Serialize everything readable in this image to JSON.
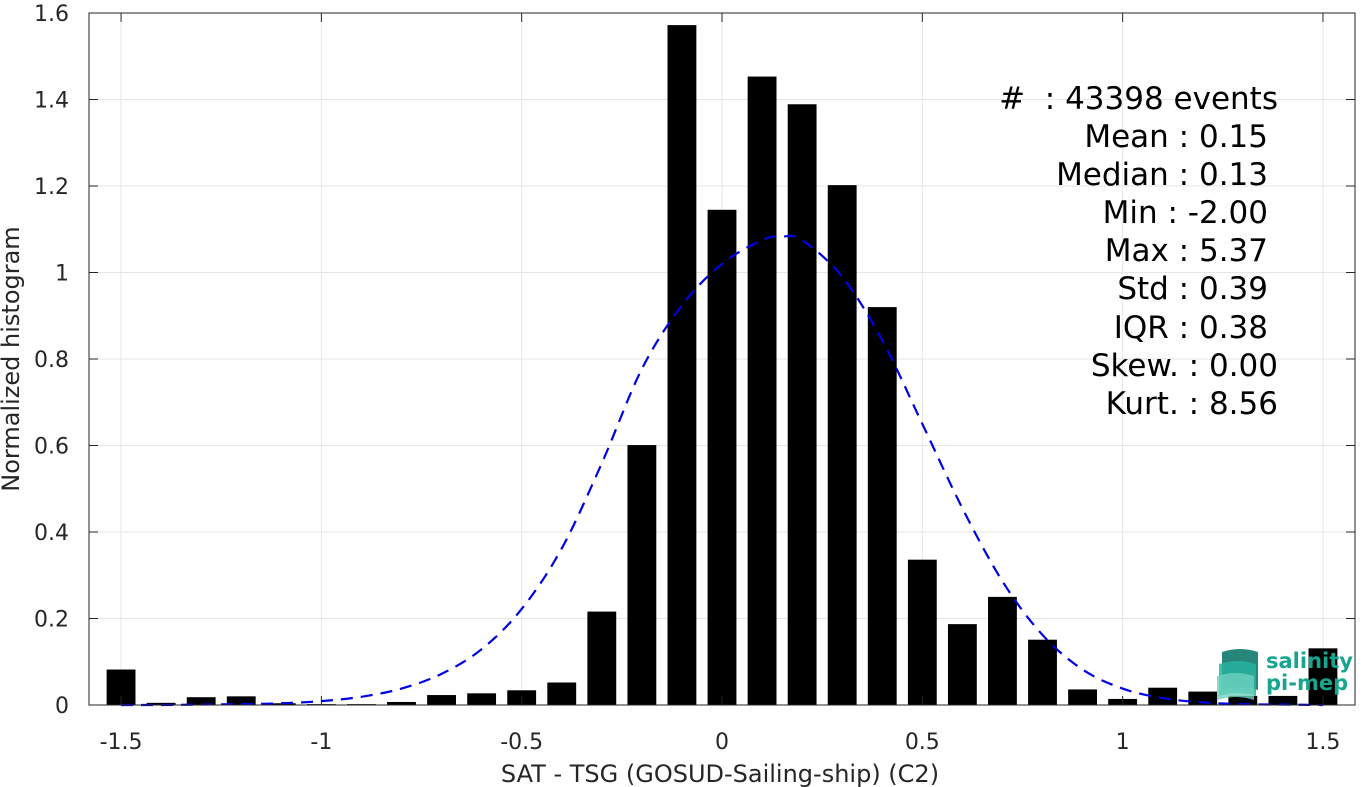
{
  "chart_data": {
    "type": "bar",
    "xlabel": "SAT - TSG (GOSUD-Sailing-ship) (C2)",
    "ylabel": "Normalized histogram",
    "xlim": [
      -1.58,
      1.58
    ],
    "ylim": [
      0,
      1.6
    ],
    "xticks": [
      -1.5,
      -1,
      -0.5,
      0,
      0.5,
      1,
      1.5
    ],
    "xtick_labels": [
      "-1.5",
      "-1",
      "-0.5",
      "0",
      "0.5",
      "1",
      "1.5"
    ],
    "yticks": [
      0,
      0.2,
      0.4,
      0.6,
      0.8,
      1,
      1.2,
      1.4,
      1.6
    ],
    "ytick_labels": [
      "0",
      "0.2",
      "0.4",
      "0.6",
      "0.8",
      "1",
      "1.2",
      "1.4",
      "1.6"
    ],
    "grid": true,
    "bin_width": 0.1,
    "bar_color": "#000000",
    "bars": {
      "x": [
        -1.5,
        -1.4,
        -1.3,
        -1.2,
        -1.1,
        -1.0,
        -0.9,
        -0.8,
        -0.7,
        -0.6,
        -0.5,
        -0.4,
        -0.3,
        -0.2,
        -0.1,
        0.0,
        0.1,
        0.2,
        0.3,
        0.4,
        0.5,
        0.6,
        0.7,
        0.8,
        0.9,
        1.0,
        1.1,
        1.2,
        1.3,
        1.4,
        1.5
      ],
      "values": [
        0.082,
        0.005,
        0.018,
        0.02,
        0.004,
        0.002,
        0.002,
        0.007,
        0.023,
        0.027,
        0.034,
        0.052,
        0.216,
        0.601,
        1.572,
        1.145,
        1.453,
        1.389,
        1.202,
        0.92,
        0.336,
        0.187,
        0.25,
        0.151,
        0.036,
        0.014,
        0.04,
        0.031,
        0.021,
        0.021,
        0.131
      ]
    },
    "fit_curve": {
      "style": "dashed",
      "color": "#0000e6",
      "x": [
        -1.5,
        -1.4,
        -1.3,
        -1.2,
        -1.1,
        -1.0,
        -0.9,
        -0.8,
        -0.7,
        -0.6,
        -0.5,
        -0.4,
        -0.3,
        -0.2,
        -0.1,
        0.0,
        0.1,
        0.15,
        0.2,
        0.3,
        0.4,
        0.5,
        0.6,
        0.7,
        0.8,
        0.9,
        1.0,
        1.1,
        1.2,
        1.3,
        1.4,
        1.5
      ],
      "y": [
        0.0,
        0.0,
        0.001,
        0.002,
        0.004,
        0.009,
        0.019,
        0.038,
        0.072,
        0.129,
        0.222,
        0.362,
        0.559,
        0.777,
        0.924,
        1.02,
        1.075,
        1.083,
        1.075,
        0.99,
        0.843,
        0.65,
        0.455,
        0.286,
        0.162,
        0.082,
        0.038,
        0.016,
        0.006,
        0.002,
        0.001,
        0.0
      ]
    },
    "stats": [
      {
        "label": "#  : 43398 events"
      },
      {
        "label": "Mean : 0.15"
      },
      {
        "label": "Median : 0.13"
      },
      {
        "label": "Min : -2.00"
      },
      {
        "label": "Max : 5.37"
      },
      {
        "label": "Std : 0.39"
      },
      {
        "label": "IQR : 0.38"
      },
      {
        "label": "Skew. : 0.00"
      },
      {
        "label": "Kurt. : 8.56"
      }
    ]
  },
  "logo": {
    "line1": "salinity",
    "line2": "pi-mep",
    "color": "#17a58f"
  }
}
